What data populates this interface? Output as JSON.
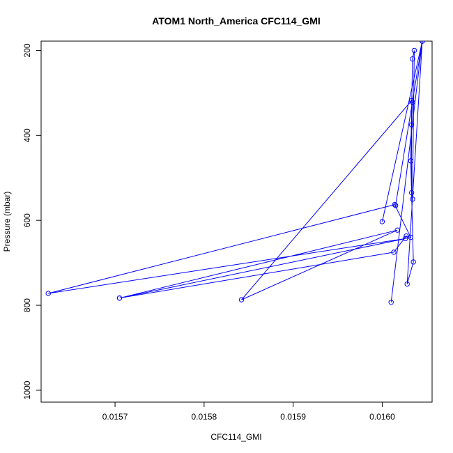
{
  "chart_data": {
    "type": "line",
    "title": "ATOM1 North_America CFC114_GMI",
    "xlabel": "CFC114_GMI",
    "ylabel": "Pressure (mbar)",
    "xlim": [
      0.015617,
      0.016056
    ],
    "ylim": [
      1028,
      178
    ],
    "y_reversed": true,
    "x_ticks": [
      0.0157,
      0.0158,
      0.0159,
      0.016
    ],
    "x_tick_labels": [
      "0.0157",
      "0.0158",
      "0.0159",
      "0.0160"
    ],
    "y_ticks": [
      200,
      400,
      600,
      800,
      1000
    ],
    "y_tick_labels": [
      "200",
      "400",
      "600",
      "800",
      "1000"
    ],
    "grid": false,
    "series": [
      {
        "color": "#0000ff",
        "marker": "open-circle",
        "points": [
          [
            0.016,
            603
          ],
          [
            0.016045,
            178
          ],
          [
            0.016015,
            565
          ],
          [
            0.016045,
            178
          ],
          [
            0.01601,
            793
          ],
          [
            0.016045,
            178
          ],
          [
            0.016028,
            750
          ],
          [
            0.016035,
            698
          ],
          [
            0.016032,
            460
          ],
          [
            0.016034,
            220
          ],
          [
            0.016036,
            200
          ],
          [
            0.016034,
            550
          ],
          [
            0.016033,
            535
          ],
          [
            0.016033,
            375
          ],
          [
            0.016034,
            322
          ],
          [
            0.016033,
            318
          ],
          [
            0.015842,
            787
          ],
          [
            0.016017,
            623
          ],
          [
            0.015705,
            783
          ],
          [
            0.016026,
            643
          ],
          [
            0.015625,
            772
          ],
          [
            0.016014,
            563
          ],
          [
            0.016032,
            640
          ],
          [
            0.016027,
            637
          ],
          [
            0.016013,
            675
          ],
          [
            0.015705,
            783
          ]
        ]
      }
    ]
  }
}
